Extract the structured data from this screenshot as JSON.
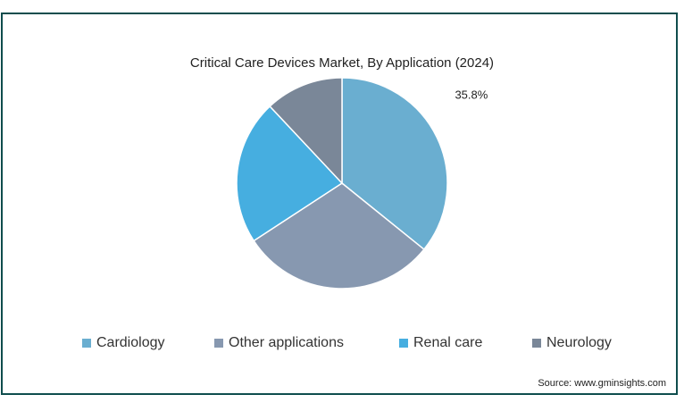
{
  "chart_data": {
    "type": "pie",
    "title": "Critical Care Devices Market, By Application (2024)",
    "categories": [
      "Cardiology",
      "Other applications",
      "Renal care",
      "Neurology"
    ],
    "values": [
      35.8,
      30.0,
      22.2,
      12.0
    ],
    "colors": [
      "#6aaed0",
      "#8798b0",
      "#46aee0",
      "#7a8798"
    ],
    "data_labels": [
      "35.8%",
      "",
      "",
      ""
    ],
    "legend_position": "bottom",
    "source": "Source: www.gminsights.com"
  }
}
